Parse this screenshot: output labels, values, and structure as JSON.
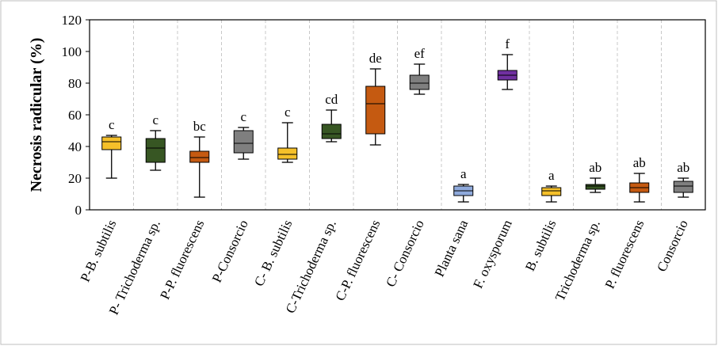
{
  "chart_data": {
    "type": "box",
    "y_label": "Necrosis radicular (%)",
    "categories": [
      "P-B. subtilis",
      "P- Trichoderma sp.",
      "P-P. fluorescens",
      "P-Consorcio",
      "C- B. subtilis",
      "C-Trichoderma sp.",
      "C-P. fluorescens",
      "C- Consorcio",
      "Planta sana",
      "F. oxysporum",
      "B. subtilis",
      "Trichoderma sp.",
      "P. fluorescens",
      "Consorcio"
    ],
    "min": [
      20,
      25,
      8,
      32,
      30,
      43,
      41,
      73,
      5,
      76,
      5,
      11,
      5,
      8
    ],
    "q1": [
      38,
      30,
      30,
      36,
      32,
      45,
      48,
      76,
      9,
      82,
      9,
      13,
      11,
      11
    ],
    "median": [
      43,
      39,
      33,
      42,
      35,
      48,
      67,
      80,
      12,
      85,
      12,
      15,
      14,
      15
    ],
    "q3": [
      46,
      45,
      37,
      50,
      39,
      54,
      78,
      85,
      15,
      88,
      14,
      16,
      17,
      18
    ],
    "max": [
      47,
      50,
      46,
      52,
      55,
      63,
      89,
      92,
      16,
      98,
      15,
      20,
      23,
      20
    ],
    "letters": [
      "c",
      "c",
      "bc",
      "c",
      "c",
      "cd",
      "de",
      "ef",
      "a",
      "f",
      "a",
      "ab",
      "ab",
      "ab"
    ],
    "colors": [
      "#f5c02a",
      "#375623",
      "#c55a11",
      "#7f7f7f",
      "#f5c02a",
      "#375623",
      "#c55a11",
      "#7f7f7f",
      "#8faadc",
      "#7030a0",
      "#f5c02a",
      "#375623",
      "#c55a11",
      "#7f7f7f"
    ],
    "ylim": [
      0,
      120
    ],
    "yticks": [
      0,
      20,
      40,
      60,
      80,
      100,
      120
    ]
  }
}
